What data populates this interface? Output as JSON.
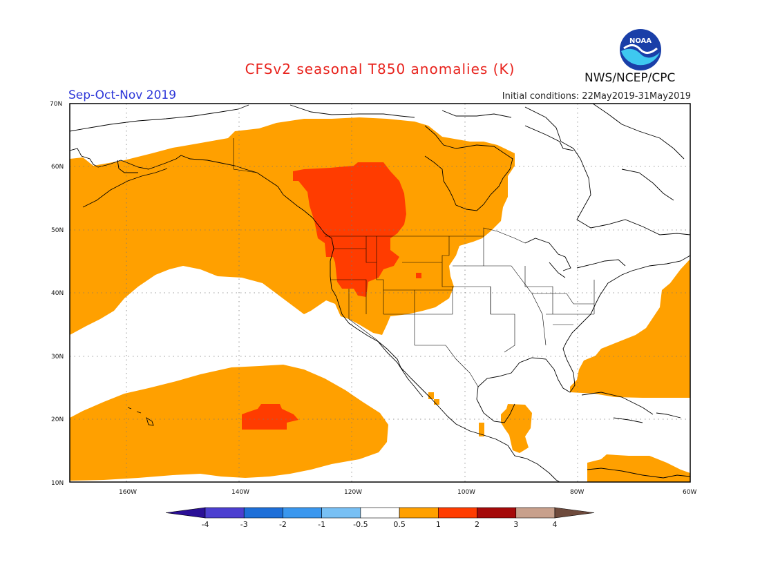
{
  "header": {
    "title": "CFSv2 seasonal T850 anomalies (K)",
    "period": "Sep-Oct-Nov 2019",
    "initial_conditions": "Initial conditions: 22May2019-31May2019",
    "agency": "NWS/NCEP/CPC",
    "logo_text": "NOAA"
  },
  "map": {
    "region": "North America / NE Pacific",
    "lon_range": [
      -170,
      -60
    ],
    "lat_range": [
      10,
      70
    ],
    "lat_labels": [
      "70N",
      "60N",
      "50N",
      "40N",
      "30N",
      "20N",
      "10N"
    ],
    "lon_labels": [
      "160W",
      "140W",
      "120W",
      "100W",
      "80W",
      "60W"
    ],
    "grid": "dotted",
    "colors": {
      "0.5-1": "#ffa000",
      "1-2": "#ff3c00",
      "coast": "#000000"
    }
  },
  "colorbar": {
    "labels": [
      "-4",
      "-3",
      "-2",
      "-1",
      "-0.5",
      "0.5",
      "1",
      "2",
      "3",
      "4"
    ],
    "colors": [
      "#2a0f96",
      "#4c3fd0",
      "#1e6fd8",
      "#3a97ee",
      "#78c0f4",
      "#ffffff",
      "#ffa000",
      "#ff3c00",
      "#a50a0a",
      "#c8a08c",
      "#6e4a3c"
    ]
  }
}
